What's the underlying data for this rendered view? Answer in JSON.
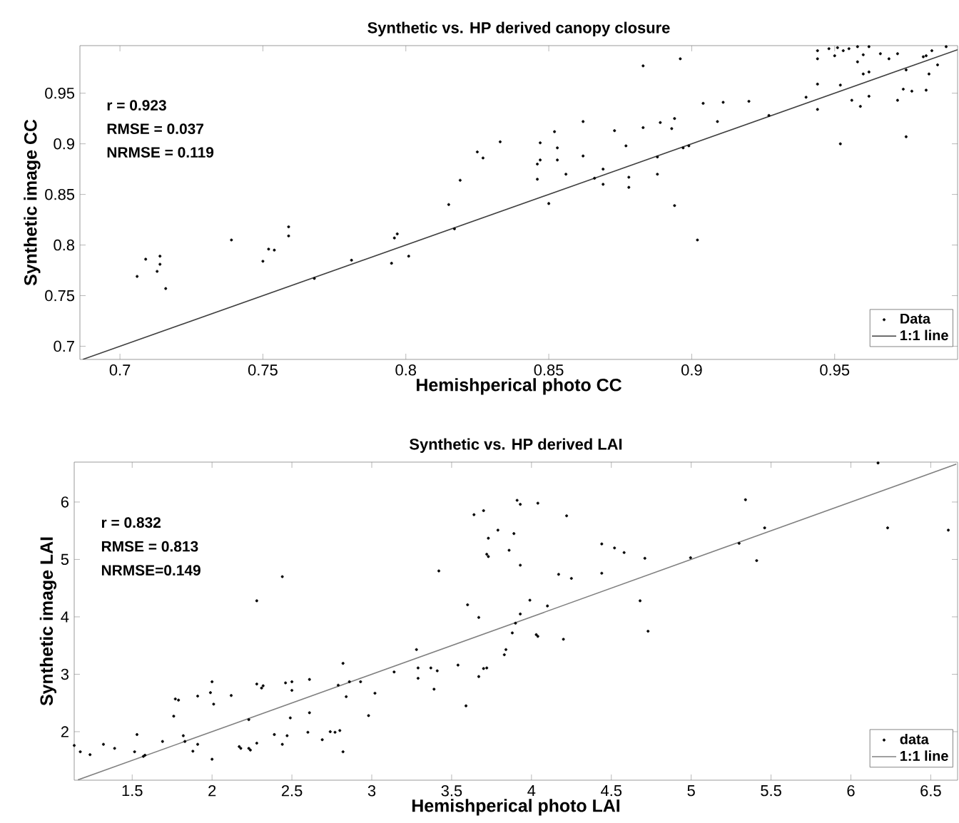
{
  "chart_data": [
    {
      "type": "scatter",
      "title": "Synthetic vs. HP derived canopy closure",
      "xlabel": "Hemishperical photo CC",
      "ylabel": "Synthetic image CC",
      "annotations": [
        "r = 0.923",
        "RMSE = 0.037",
        "NRMSE = 0.119"
      ],
      "xlim": [
        0.686,
        0.993
      ],
      "ylim": [
        0.687,
        0.997
      ],
      "xticks": [
        0.7,
        0.75,
        0.8,
        0.85,
        0.9,
        0.95
      ],
      "yticks": [
        0.7,
        0.75,
        0.8,
        0.85,
        0.9,
        0.95
      ],
      "legend": "bottom right",
      "series": [
        {
          "name": "Data",
          "color": "#000000",
          "marker": "circle",
          "x": [
            0.706,
            0.709,
            0.714,
            0.714,
            0.713,
            0.716,
            0.739,
            0.75,
            0.752,
            0.754,
            0.759,
            0.759,
            0.768,
            0.781,
            0.795,
            0.796,
            0.797,
            0.801,
            0.815,
            0.817,
            0.819,
            0.825,
            0.827,
            0.833,
            0.846,
            0.847,
            0.847,
            0.846,
            0.85,
            0.852,
            0.853,
            0.853,
            0.856,
            0.862,
            0.862,
            0.866,
            0.869,
            0.869,
            0.873,
            0.877,
            0.878,
            0.878,
            0.883,
            0.883,
            0.888,
            0.888,
            0.889,
            0.893,
            0.894,
            0.894,
            0.896,
            0.897,
            0.899,
            0.902,
            0.904,
            0.909,
            0.911,
            0.92,
            0.927,
            0.94,
            0.944,
            0.944,
            0.944,
            0.944,
            0.948,
            0.95,
            0.951,
            0.953,
            0.952,
            0.952,
            0.955,
            0.956,
            0.958,
            0.958,
            0.959,
            0.96,
            0.962,
            0.96,
            0.962,
            0.962,
            0.966,
            0.969,
            0.972,
            0.972,
            0.974,
            0.975,
            0.975,
            0.977,
            0.981,
            0.982,
            0.982,
            0.983,
            0.984,
            0.986,
            0.989
          ],
          "values": [
            0.769,
            0.786,
            0.789,
            0.781,
            0.774,
            0.757,
            0.805,
            0.784,
            0.796,
            0.795,
            0.818,
            0.809,
            0.767,
            0.785,
            0.782,
            0.807,
            0.811,
            0.789,
            0.84,
            0.816,
            0.864,
            0.892,
            0.886,
            0.902,
            0.88,
            0.901,
            0.884,
            0.865,
            0.841,
            0.912,
            0.896,
            0.884,
            0.87,
            0.888,
            0.922,
            0.866,
            0.875,
            0.86,
            0.913,
            0.898,
            0.867,
            0.857,
            0.977,
            0.916,
            0.887,
            0.87,
            0.921,
            0.915,
            0.925,
            0.839,
            0.984,
            0.896,
            0.898,
            0.805,
            0.94,
            0.922,
            0.941,
            0.942,
            0.928,
            0.946,
            0.959,
            0.934,
            0.984,
            0.992,
            0.994,
            0.987,
            0.995,
            0.992,
            0.9,
            0.958,
            0.994,
            0.943,
            0.996,
            0.981,
            0.937,
            0.988,
            0.996,
            0.969,
            0.971,
            0.947,
            0.989,
            0.984,
            0.943,
            0.989,
            0.954,
            0.907,
            0.973,
            0.952,
            0.986,
            0.953,
            0.987,
            0.969,
            0.992,
            0.978,
            0.996
          ]
        },
        {
          "name": "1:1 line",
          "type": "line",
          "marker": "none",
          "color": "#404040",
          "x": [
            0.687,
            0.993
          ],
          "values": [
            0.687,
            0.993
          ]
        }
      ]
    },
    {
      "type": "scatter",
      "title": "Synthetic vs. HP derived LAI",
      "xlabel": "Hemishperical photo LAI",
      "ylabel": "Synthetic image LAI",
      "annotations": [
        "r = 0.832",
        "RMSE = 0.813",
        "NRMSE=0.149"
      ],
      "xlim": [
        1.137,
        6.668
      ],
      "ylim": [
        1.155,
        6.695
      ],
      "xticks": [
        1.5,
        2,
        2.5,
        3,
        3.5,
        4,
        4.5,
        5,
        5.5,
        6,
        6.5
      ],
      "yticks": [
        2,
        3,
        4,
        5,
        6
      ],
      "legend": "bottom right",
      "series": [
        {
          "name": "data",
          "color": "#000000",
          "marker": "circle",
          "x": [
            1.137,
            1.175,
            1.236,
            1.32,
            1.39,
            1.515,
            1.53,
            1.57,
            1.58,
            1.69,
            1.76,
            1.77,
            1.79,
            1.82,
            1.83,
            1.88,
            1.91,
            1.91,
            1.99,
            2.0,
            2.0,
            2.01,
            2.12,
            2.17,
            2.18,
            2.23,
            2.23,
            2.24,
            2.28,
            2.28,
            2.28,
            2.31,
            2.32,
            2.39,
            2.44,
            2.44,
            2.46,
            2.47,
            2.5,
            2.49,
            2.5,
            2.61,
            2.61,
            2.6,
            2.69,
            2.74,
            2.77,
            2.79,
            2.8,
            2.82,
            2.82,
            2.84,
            2.86,
            2.93,
            2.98,
            3.02,
            3.14,
            3.28,
            3.29,
            3.29,
            3.37,
            3.39,
            3.41,
            3.42,
            3.54,
            3.59,
            3.6,
            3.64,
            3.67,
            3.67,
            3.7,
            3.7,
            3.72,
            3.72,
            3.73,
            3.73,
            3.79,
            3.83,
            3.84,
            3.86,
            3.88,
            3.89,
            3.9,
            3.91,
            3.93,
            3.93,
            3.93,
            3.99,
            4.03,
            4.04,
            4.04,
            4.1,
            4.17,
            4.2,
            4.22,
            4.25,
            4.44,
            4.44,
            4.52,
            4.58,
            4.68,
            4.71,
            4.73,
            4.996,
            5.3,
            5.34,
            5.41,
            5.46,
            6.17,
            6.23,
            6.61
          ],
          "values": [
            1.76,
            1.65,
            1.6,
            1.78,
            1.71,
            1.65,
            1.95,
            1.57,
            1.59,
            1.83,
            2.27,
            2.57,
            2.55,
            1.93,
            1.83,
            1.66,
            1.78,
            2.62,
            2.68,
            1.52,
            2.87,
            2.48,
            2.63,
            1.74,
            1.71,
            2.21,
            1.71,
            1.68,
            4.28,
            1.8,
            2.83,
            2.76,
            2.8,
            1.95,
            1.78,
            4.7,
            2.85,
            1.93,
            2.72,
            2.24,
            2.87,
            2.33,
            2.91,
            1.99,
            1.86,
            2.0,
            1.99,
            2.81,
            2.02,
            3.19,
            1.65,
            2.61,
            2.87,
            2.87,
            2.28,
            2.67,
            3.04,
            3.43,
            3.11,
            2.93,
            3.11,
            2.74,
            3.06,
            4.8,
            3.16,
            2.45,
            4.21,
            5.78,
            3.99,
            2.96,
            5.85,
            3.1,
            3.11,
            5.09,
            5.05,
            5.37,
            5.51,
            3.34,
            3.43,
            5.16,
            3.72,
            5.45,
            3.89,
            6.03,
            5.96,
            4.9,
            4.05,
            4.29,
            3.69,
            5.98,
            3.66,
            4.19,
            4.74,
            3.61,
            5.76,
            4.67,
            5.27,
            4.76,
            5.2,
            5.12,
            4.28,
            5.02,
            3.75,
            5.03,
            5.28,
            6.04,
            4.98,
            5.55,
            6.68,
            5.55,
            5.51
          ]
        },
        {
          "name": "1:1 line",
          "type": "line",
          "marker": "none",
          "color": "#808080",
          "x": [
            1.16,
            6.66
          ],
          "values": [
            1.16,
            6.66
          ]
        }
      ]
    }
  ]
}
